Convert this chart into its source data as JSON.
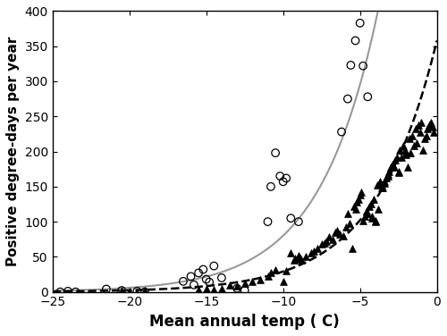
{
  "title": "",
  "xlabel": "Mean annual temp ( C)",
  "ylabel": "Positive degree-days per year",
  "xlim": [
    -25,
    0
  ],
  "ylim": [
    0,
    400
  ],
  "xticks": [
    -25,
    -20,
    -15,
    -10,
    -5,
    0
  ],
  "yticks": [
    0,
    50,
    100,
    150,
    200,
    250,
    300,
    350,
    400
  ],
  "east_coast_circles": [
    [
      -24.5,
      0
    ],
    [
      -24,
      1
    ],
    [
      -23.5,
      0
    ],
    [
      -21.5,
      4
    ],
    [
      -20.5,
      2
    ],
    [
      -19.5,
      1
    ],
    [
      -19,
      0
    ],
    [
      -16.5,
      15
    ],
    [
      -16.0,
      22
    ],
    [
      -15.8,
      10
    ],
    [
      -15.5,
      27
    ],
    [
      -15.2,
      32
    ],
    [
      -15.0,
      18
    ],
    [
      -14.8,
      14
    ],
    [
      -14.5,
      37
    ],
    [
      -14.0,
      20
    ],
    [
      -13.0,
      5
    ],
    [
      -12.5,
      2
    ],
    [
      -11.0,
      100
    ],
    [
      -10.8,
      150
    ],
    [
      -10.5,
      198
    ],
    [
      -10.2,
      165
    ],
    [
      -10.0,
      157
    ],
    [
      -9.8,
      162
    ],
    [
      -9.5,
      105
    ],
    [
      -9.0,
      100
    ],
    [
      -6.2,
      228
    ],
    [
      -5.8,
      275
    ],
    [
      -5.6,
      323
    ],
    [
      -5.3,
      358
    ],
    [
      -5.0,
      383
    ],
    [
      -4.8,
      322
    ],
    [
      -4.5,
      278
    ]
  ],
  "west_coast_triangles": [
    [
      -20.5,
      2
    ],
    [
      -20.0,
      1
    ],
    [
      -19.5,
      0
    ],
    [
      -19.0,
      2
    ],
    [
      -15.5,
      3
    ],
    [
      -15.0,
      4
    ],
    [
      -14.5,
      3
    ],
    [
      -14.0,
      5
    ],
    [
      -13.5,
      10
    ],
    [
      -13.0,
      8
    ],
    [
      -12.5,
      12
    ],
    [
      -12.0,
      15
    ],
    [
      -11.5,
      18
    ],
    [
      -11.0,
      22
    ],
    [
      -10.8,
      28
    ],
    [
      -10.5,
      32
    ],
    [
      -10.0,
      15
    ],
    [
      -9.5,
      55
    ],
    [
      -9.2,
      48
    ],
    [
      -9.0,
      52
    ],
    [
      -8.8,
      45
    ],
    [
      -8.5,
      50
    ],
    [
      -8.2,
      55
    ],
    [
      -8.0,
      58
    ],
    [
      -7.8,
      62
    ],
    [
      -7.5,
      68
    ],
    [
      -7.2,
      72
    ],
    [
      -7.0,
      78
    ],
    [
      -6.8,
      75
    ],
    [
      -6.5,
      88
    ],
    [
      -6.3,
      82
    ],
    [
      -6.1,
      80
    ],
    [
      -5.9,
      92
    ],
    [
      -5.8,
      112
    ],
    [
      -5.7,
      98
    ],
    [
      -5.5,
      62
    ],
    [
      -5.4,
      122
    ],
    [
      -5.3,
      118
    ],
    [
      -5.2,
      128
    ],
    [
      -5.1,
      132
    ],
    [
      -5.0,
      138
    ],
    [
      -4.9,
      142
    ],
    [
      -4.8,
      102
    ],
    [
      -4.7,
      108
    ],
    [
      -4.6,
      115
    ],
    [
      -4.5,
      112
    ],
    [
      -4.4,
      122
    ],
    [
      -4.3,
      125
    ],
    [
      -4.2,
      108
    ],
    [
      -4.1,
      132
    ],
    [
      -4.0,
      102
    ],
    [
      -3.9,
      152
    ],
    [
      -3.8,
      118
    ],
    [
      -3.7,
      158
    ],
    [
      -3.6,
      148
    ],
    [
      -3.5,
      148
    ],
    [
      -3.4,
      158
    ],
    [
      -3.3,
      162
    ],
    [
      -3.2,
      168
    ],
    [
      -3.1,
      172
    ],
    [
      -3.0,
      178
    ],
    [
      -2.9,
      182
    ],
    [
      -2.8,
      178
    ],
    [
      -2.7,
      188
    ],
    [
      -2.6,
      192
    ],
    [
      -2.5,
      172
    ],
    [
      -2.4,
      202
    ],
    [
      -2.3,
      192
    ],
    [
      -2.2,
      208
    ],
    [
      -2.1,
      202
    ],
    [
      -2.0,
      198
    ],
    [
      -1.9,
      178
    ],
    [
      -1.8,
      218
    ],
    [
      -1.7,
      198
    ],
    [
      -1.6,
      222
    ],
    [
      -1.5,
      208
    ],
    [
      -1.4,
      232
    ],
    [
      -1.3,
      212
    ],
    [
      -1.2,
      238
    ],
    [
      -1.1,
      228
    ],
    [
      -1.0,
      242
    ],
    [
      -0.9,
      202
    ],
    [
      -0.8,
      218
    ],
    [
      -0.7,
      222
    ],
    [
      -0.6,
      232
    ],
    [
      -0.5,
      238
    ],
    [
      -0.4,
      242
    ],
    [
      -0.3,
      235
    ],
    [
      -0.2,
      228
    ],
    [
      -6.6,
      85
    ],
    [
      -7.3,
      70
    ],
    [
      -8.9,
      48
    ],
    [
      -9.3,
      45
    ],
    [
      -9.8,
      30
    ],
    [
      -3.6,
      152
    ],
    [
      -3.4,
      155
    ],
    [
      -3.2,
      165
    ],
    [
      -4.2,
      105
    ],
    [
      -4.0,
      100
    ],
    [
      -2.5,
      170
    ],
    [
      -2.0,
      195
    ]
  ],
  "east_fit_a": 1089,
  "east_fit_b": 0.261,
  "west_fit_a": 358,
  "west_fit_b": 0.251,
  "east_line_color": "#999999",
  "west_line_color": "#000000",
  "background_color": "#ffffff",
  "circle_size": 38,
  "triangle_size": 32,
  "xlabel_fontsize": 12,
  "ylabel_fontsize": 11,
  "tick_fontsize": 10
}
